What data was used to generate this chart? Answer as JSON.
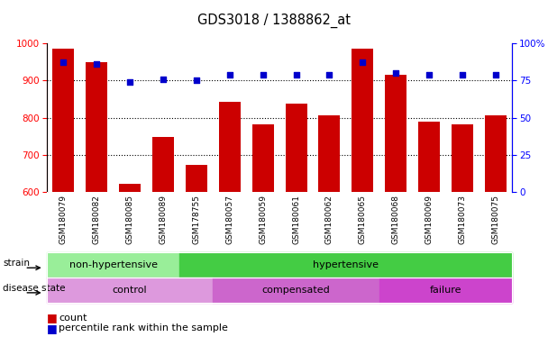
{
  "title": "GDS3018 / 1388862_at",
  "samples": [
    "GSM180079",
    "GSM180082",
    "GSM180085",
    "GSM180089",
    "GSM178755",
    "GSM180057",
    "GSM180059",
    "GSM180061",
    "GSM180062",
    "GSM180065",
    "GSM180068",
    "GSM180069",
    "GSM180073",
    "GSM180075"
  ],
  "counts": [
    985,
    950,
    622,
    748,
    672,
    843,
    783,
    837,
    806,
    986,
    915,
    789,
    781,
    805
  ],
  "percentiles": [
    87,
    86,
    74,
    76,
    75,
    79,
    79,
    79,
    79,
    87,
    80,
    79,
    79,
    79
  ],
  "ylim_left": [
    600,
    1000
  ],
  "ylim_right": [
    0,
    100
  ],
  "yticks_left": [
    600,
    700,
    800,
    900,
    1000
  ],
  "yticks_right": [
    0,
    25,
    50,
    75,
    100
  ],
  "bar_color": "#cc0000",
  "dot_color": "#0000cc",
  "strain_groups": [
    {
      "label": "non-hypertensive",
      "start": 0,
      "end": 4,
      "color": "#99ee99"
    },
    {
      "label": "hypertensive",
      "start": 4,
      "end": 14,
      "color": "#44cc44"
    }
  ],
  "disease_groups": [
    {
      "label": "control",
      "start": 0,
      "end": 5,
      "color": "#dd99dd"
    },
    {
      "label": "compensated",
      "start": 5,
      "end": 10,
      "color": "#cc66cc"
    },
    {
      "label": "failure",
      "start": 10,
      "end": 14,
      "color": "#cc44cc"
    }
  ],
  "legend_count_color": "#cc0000",
  "legend_dot_color": "#0000cc"
}
